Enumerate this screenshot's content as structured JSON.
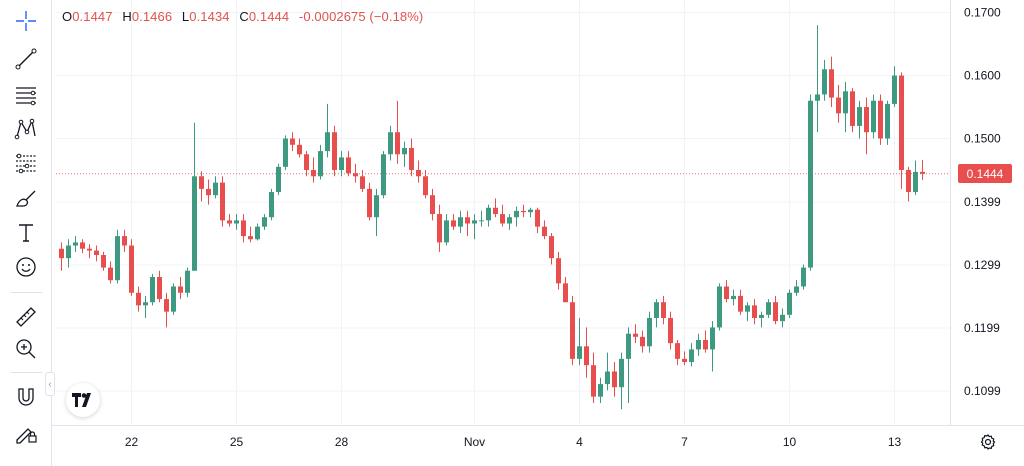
{
  "legend": {
    "open_key": "O",
    "open": "0.1447",
    "high_key": "H",
    "high": "0.1466",
    "low_key": "L",
    "low": "0.1434",
    "close_key": "C",
    "close": "0.1444",
    "change": "-0.0002675 (−0.18%)"
  },
  "toolbar": {
    "tools": [
      {
        "name": "crosshair-icon"
      },
      {
        "name": "trend-line-icon"
      },
      {
        "name": "horizontal-lines-icon"
      },
      {
        "name": "pattern-icon"
      },
      {
        "name": "fib-icon"
      },
      {
        "name": "brush-icon"
      },
      {
        "name": "text-icon"
      },
      {
        "name": "emoji-icon"
      },
      {
        "name": "ruler-icon"
      },
      {
        "name": "zoom-in-icon"
      },
      {
        "name": "magnet-icon"
      },
      {
        "name": "lock-draw-icon"
      }
    ]
  },
  "colors": {
    "up": "#26a69a",
    "up_body": "#3d9a80",
    "down": "#e84e4e",
    "last_price_line": "#e84e4e"
  },
  "chart_data": {
    "type": "candlestick",
    "y_ticks": [
      "0.1700",
      "0.1600",
      "0.1500",
      "0.1444",
      "0.1399",
      "0.1299",
      "0.1199",
      "0.1099"
    ],
    "y_tick_values": [
      0.17,
      0.16,
      0.15,
      0.1399,
      0.1299,
      0.1199,
      0.1099
    ],
    "ylim": [
      0.1045,
      0.172
    ],
    "x_ticks": [
      {
        "label": "22",
        "index": 10
      },
      {
        "label": "25",
        "index": 25
      },
      {
        "label": "28",
        "index": 40
      },
      {
        "label": "Nov",
        "index": 59
      },
      {
        "label": "4",
        "index": 74
      },
      {
        "label": "7",
        "index": 89
      },
      {
        "label": "10",
        "index": 104
      },
      {
        "label": "13",
        "index": 119
      }
    ],
    "last_price": 0.1444,
    "last_price_label": "0.1444",
    "candles": [
      [
        0.1325,
        0.1335,
        0.129,
        0.131
      ],
      [
        0.131,
        0.134,
        0.1295,
        0.133
      ],
      [
        0.133,
        0.1345,
        0.132,
        0.1335
      ],
      [
        0.1335,
        0.134,
        0.1318,
        0.1325
      ],
      [
        0.1325,
        0.1332,
        0.131,
        0.1322
      ],
      [
        0.1322,
        0.133,
        0.1305,
        0.1315
      ],
      [
        0.1315,
        0.132,
        0.129,
        0.1295
      ],
      [
        0.1295,
        0.1305,
        0.127,
        0.1275
      ],
      [
        0.1275,
        0.1355,
        0.127,
        0.1345
      ],
      [
        0.1345,
        0.1355,
        0.132,
        0.133
      ],
      [
        0.133,
        0.134,
        0.125,
        0.1255
      ],
      [
        0.1255,
        0.1265,
        0.1225,
        0.1235
      ],
      [
        0.1235,
        0.125,
        0.1215,
        0.124
      ],
      [
        0.124,
        0.1285,
        0.1235,
        0.128
      ],
      [
        0.128,
        0.129,
        0.124,
        0.1245
      ],
      [
        0.1245,
        0.1255,
        0.12,
        0.1225
      ],
      [
        0.1225,
        0.127,
        0.122,
        0.1265
      ],
      [
        0.1265,
        0.128,
        0.1245,
        0.1255
      ],
      [
        0.1255,
        0.1295,
        0.1248,
        0.129
      ],
      [
        0.129,
        0.1525,
        0.129,
        0.144
      ],
      [
        0.144,
        0.1448,
        0.14,
        0.142
      ],
      [
        0.142,
        0.1435,
        0.1395,
        0.141
      ],
      [
        0.141,
        0.144,
        0.1405,
        0.143
      ],
      [
        0.143,
        0.144,
        0.136,
        0.137
      ],
      [
        0.137,
        0.138,
        0.136,
        0.1365
      ],
      [
        0.1365,
        0.138,
        0.1355,
        0.137
      ],
      [
        0.137,
        0.138,
        0.1335,
        0.1345
      ],
      [
        0.1345,
        0.136,
        0.1335,
        0.134
      ],
      [
        0.134,
        0.1365,
        0.1338,
        0.136
      ],
      [
        0.136,
        0.138,
        0.1355,
        0.1375
      ],
      [
        0.1375,
        0.142,
        0.137,
        0.1415
      ],
      [
        0.1415,
        0.146,
        0.141,
        0.1455
      ],
      [
        0.1455,
        0.1505,
        0.145,
        0.15
      ],
      [
        0.15,
        0.151,
        0.148,
        0.149
      ],
      [
        0.149,
        0.15,
        0.147,
        0.1475
      ],
      [
        0.1475,
        0.148,
        0.144,
        0.145
      ],
      [
        0.145,
        0.147,
        0.143,
        0.144
      ],
      [
        0.144,
        0.149,
        0.1435,
        0.148
      ],
      [
        0.148,
        0.1555,
        0.147,
        0.151
      ],
      [
        0.151,
        0.152,
        0.144,
        0.145
      ],
      [
        0.145,
        0.148,
        0.144,
        0.147
      ],
      [
        0.147,
        0.148,
        0.144,
        0.1445
      ],
      [
        0.1445,
        0.146,
        0.143,
        0.144
      ],
      [
        0.144,
        0.145,
        0.1415,
        0.142
      ],
      [
        0.142,
        0.143,
        0.137,
        0.1375
      ],
      [
        0.1375,
        0.142,
        0.1345,
        0.141
      ],
      [
        0.141,
        0.148,
        0.1405,
        0.1475
      ],
      [
        0.1475,
        0.152,
        0.1465,
        0.151
      ],
      [
        0.151,
        0.156,
        0.146,
        0.1475
      ],
      [
        0.1475,
        0.1495,
        0.1455,
        0.1485
      ],
      [
        0.1485,
        0.15,
        0.144,
        0.145
      ],
      [
        0.145,
        0.1465,
        0.143,
        0.144
      ],
      [
        0.144,
        0.145,
        0.1405,
        0.141
      ],
      [
        0.141,
        0.142,
        0.137,
        0.138
      ],
      [
        0.138,
        0.1395,
        0.132,
        0.1335
      ],
      [
        0.1335,
        0.138,
        0.133,
        0.137
      ],
      [
        0.137,
        0.138,
        0.1355,
        0.136
      ],
      [
        0.136,
        0.1385,
        0.135,
        0.1375
      ],
      [
        0.1375,
        0.1385,
        0.1345,
        0.1365
      ],
      [
        0.1365,
        0.138,
        0.134,
        0.137
      ],
      [
        0.137,
        0.1385,
        0.136,
        0.137
      ],
      [
        0.137,
        0.1395,
        0.136,
        0.139
      ],
      [
        0.139,
        0.1405,
        0.1375,
        0.138
      ],
      [
        0.138,
        0.1395,
        0.136,
        0.1365
      ],
      [
        0.1365,
        0.138,
        0.1355,
        0.1375
      ],
      [
        0.1375,
        0.1392,
        0.136,
        0.1385
      ],
      [
        0.1385,
        0.1395,
        0.1375,
        0.1383
      ],
      [
        0.1383,
        0.139,
        0.1375,
        0.1387
      ],
      [
        0.1387,
        0.139,
        0.135,
        0.136
      ],
      [
        0.136,
        0.137,
        0.134,
        0.1345
      ],
      [
        0.1345,
        0.135,
        0.13,
        0.131
      ],
      [
        0.131,
        0.132,
        0.126,
        0.127
      ],
      [
        0.127,
        0.128,
        0.124,
        0.124
      ],
      [
        0.124,
        0.125,
        0.114,
        0.115
      ],
      [
        0.115,
        0.1215,
        0.114,
        0.117
      ],
      [
        0.117,
        0.12,
        0.112,
        0.114
      ],
      [
        0.114,
        0.116,
        0.108,
        0.109
      ],
      [
        0.109,
        0.112,
        0.108,
        0.111
      ],
      [
        0.111,
        0.116,
        0.11,
        0.113
      ],
      [
        0.113,
        0.1145,
        0.109,
        0.1105
      ],
      [
        0.1105,
        0.116,
        0.107,
        0.115
      ],
      [
        0.115,
        0.12,
        0.108,
        0.119
      ],
      [
        0.119,
        0.1205,
        0.1175,
        0.1185
      ],
      [
        0.1185,
        0.1195,
        0.116,
        0.117
      ],
      [
        0.117,
        0.1225,
        0.116,
        0.1215
      ],
      [
        0.1215,
        0.1245,
        0.12,
        0.124
      ],
      [
        0.124,
        0.125,
        0.1205,
        0.1215
      ],
      [
        0.1215,
        0.1225,
        0.1165,
        0.1175
      ],
      [
        0.1175,
        0.118,
        0.114,
        0.115
      ],
      [
        0.115,
        0.1162,
        0.114,
        0.1145
      ],
      [
        0.1145,
        0.1175,
        0.1138,
        0.1165
      ],
      [
        0.1165,
        0.119,
        0.1155,
        0.118
      ],
      [
        0.118,
        0.1195,
        0.116,
        0.1165
      ],
      [
        0.1165,
        0.121,
        0.113,
        0.12
      ],
      [
        0.12,
        0.127,
        0.1195,
        0.1265
      ],
      [
        0.1265,
        0.1275,
        0.124,
        0.1245
      ],
      [
        0.1245,
        0.126,
        0.1235,
        0.125
      ],
      [
        0.125,
        0.126,
        0.122,
        0.1225
      ],
      [
        0.1225,
        0.124,
        0.121,
        0.1235
      ],
      [
        0.1235,
        0.1245,
        0.1205,
        0.1215
      ],
      [
        0.1215,
        0.1225,
        0.12,
        0.122
      ],
      [
        0.122,
        0.1245,
        0.1215,
        0.124
      ],
      [
        0.124,
        0.125,
        0.1205,
        0.121
      ],
      [
        0.121,
        0.123,
        0.12,
        0.122
      ],
      [
        0.122,
        0.126,
        0.1215,
        0.1255
      ],
      [
        0.1255,
        0.1275,
        0.125,
        0.1265
      ],
      [
        0.1265,
        0.13,
        0.126,
        0.1295
      ],
      [
        0.1295,
        0.157,
        0.129,
        0.156
      ],
      [
        0.156,
        0.168,
        0.151,
        0.157
      ],
      [
        0.157,
        0.1625,
        0.156,
        0.161
      ],
      [
        0.161,
        0.163,
        0.155,
        0.1565
      ],
      [
        0.1565,
        0.1585,
        0.1525,
        0.154
      ],
      [
        0.154,
        0.159,
        0.151,
        0.1575
      ],
      [
        0.1575,
        0.158,
        0.151,
        0.152
      ],
      [
        0.152,
        0.156,
        0.15,
        0.155
      ],
      [
        0.155,
        0.1565,
        0.1475,
        0.151
      ],
      [
        0.151,
        0.157,
        0.15,
        0.156
      ],
      [
        0.156,
        0.157,
        0.149,
        0.15
      ],
      [
        0.15,
        0.156,
        0.149,
        0.1555
      ],
      [
        0.1555,
        0.1615,
        0.155,
        0.16
      ],
      [
        0.16,
        0.1605,
        0.142,
        0.145
      ],
      [
        0.145,
        0.1455,
        0.14,
        0.1415
      ],
      [
        0.1415,
        0.1465,
        0.141,
        0.1447
      ],
      [
        0.1447,
        0.1466,
        0.1434,
        0.1444
      ]
    ]
  }
}
